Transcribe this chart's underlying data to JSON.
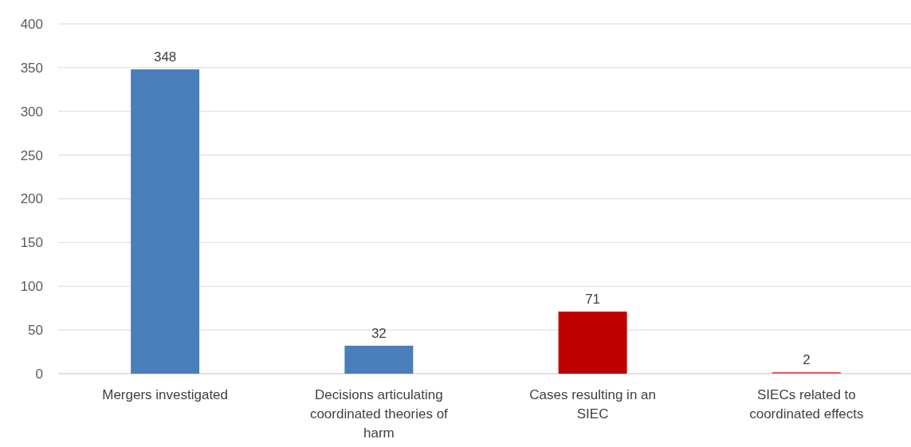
{
  "chart_data": {
    "type": "bar",
    "categories": [
      "Mergers investigated",
      "Decisions articulating coordinated theories of harm",
      "Cases resulting in an SIEC",
      "SIECs related to coordinated effects"
    ],
    "values": [
      348,
      32,
      71,
      2
    ],
    "colors": [
      "#4a7ebb",
      "#4a7ebb",
      "#c00000",
      "#e06666"
    ],
    "ylim": [
      0,
      400
    ],
    "yticks": [
      0,
      50,
      100,
      150,
      200,
      250,
      300,
      350,
      400
    ],
    "grid": "y",
    "data_labels": true
  }
}
